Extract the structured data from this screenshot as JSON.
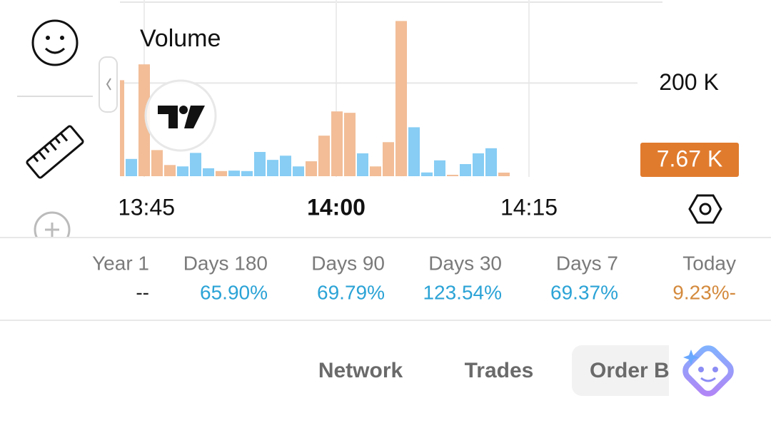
{
  "chart_data": {
    "type": "bar",
    "title": "Volume",
    "values": [
      206000,
      37000,
      240000,
      56000,
      24000,
      21000,
      50000,
      17000,
      11000,
      12000,
      11000,
      52000,
      35000,
      44000,
      21000,
      32000,
      87000,
      139000,
      136000,
      49000,
      21000,
      73000,
      333000,
      105000,
      8000,
      34000,
      3000,
      26000,
      49000,
      60000,
      7670
    ],
    "colors": [
      "#f2bd97",
      "#87cdf4",
      "#f2bd97",
      "#f2bd97",
      "#f2bd97",
      "#87cdf4",
      "#87cdf4",
      "#87cdf4",
      "#f2bd97",
      "#87cdf4",
      "#87cdf4",
      "#87cdf4",
      "#87cdf4",
      "#87cdf4",
      "#87cdf4",
      "#f2bd97",
      "#f2bd97",
      "#f2bd97",
      "#f2bd97",
      "#87cdf4",
      "#f2bd97",
      "#f2bd97",
      "#f2bd97",
      "#87cdf4",
      "#87cdf4",
      "#87cdf4",
      "#f2bd97",
      "#87cdf4",
      "#87cdf4",
      "#87cdf4",
      "#f2bd97"
    ],
    "ylim": [
      0,
      375000
    ],
    "yticks": [
      {
        "value": 200000,
        "label": "200 K"
      }
    ],
    "xtick_labels": [
      "13:45",
      "14:00",
      "14:15"
    ],
    "current_value": {
      "value": 7670,
      "label": "7.67 K",
      "color": "#e07b2e"
    },
    "grid": true
  },
  "stats": [
    {
      "label": "Year 1",
      "value": "--",
      "color": "#222222"
    },
    {
      "label": "Days 180",
      "value": "65.90%",
      "color": "#2ba3d6"
    },
    {
      "label": "Days 90",
      "value": "69.79%",
      "color": "#2ba3d6"
    },
    {
      "label": "Days 30",
      "value": "123.54%",
      "color": "#2ba3d6"
    },
    {
      "label": "Days 7",
      "value": "69.37%",
      "color": "#2ba3d6"
    },
    {
      "label": "Today",
      "value": "9.23%-",
      "color": "#d48a3d"
    }
  ],
  "tabs": [
    "Network",
    "Trades",
    "Order B"
  ]
}
